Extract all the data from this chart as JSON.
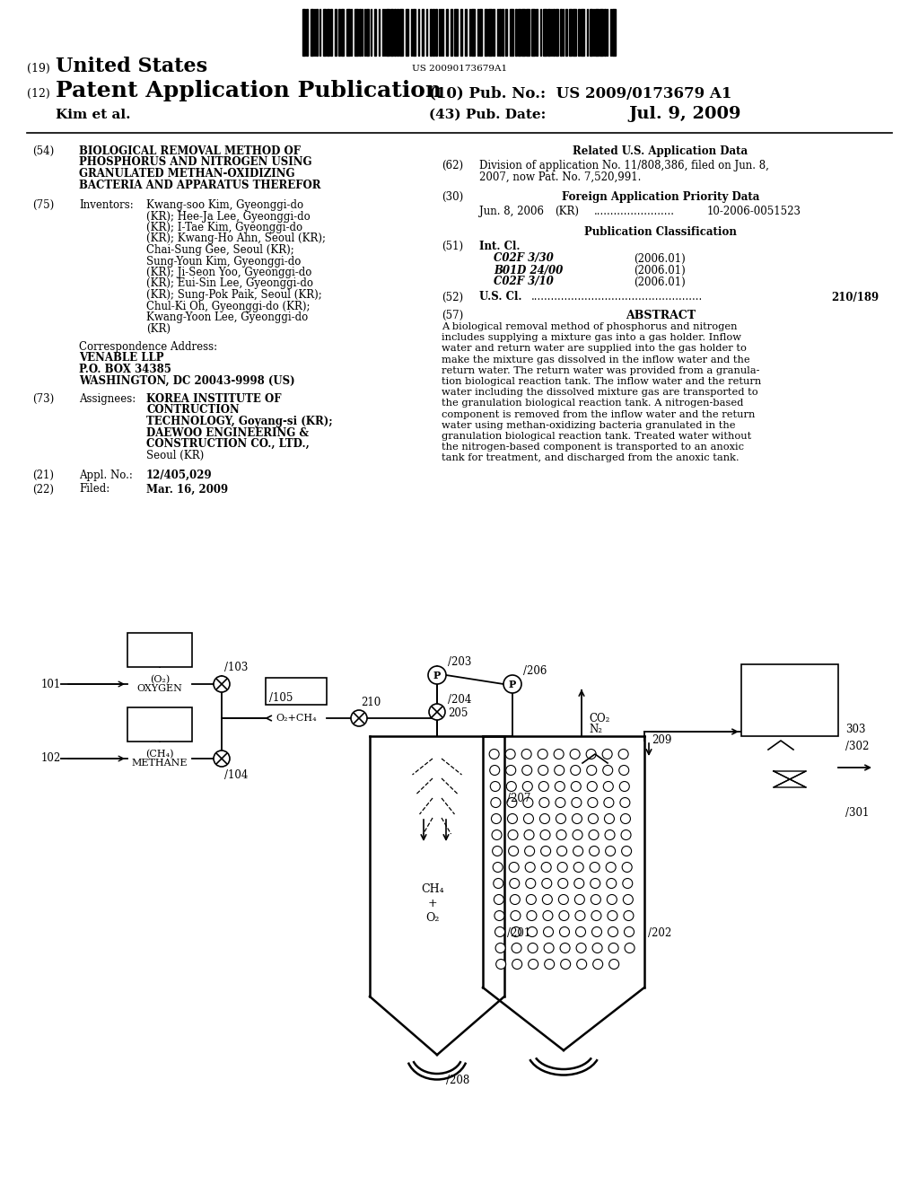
{
  "bg_color": "#ffffff",
  "barcode_text": "US 20090173679A1",
  "field54": "BIOLOGICAL REMOVAL METHOD OF\nPHOSPHORUS AND NITROGEN USING\nGRANULATED METHAN-OXIDIZING\nBACTERIA AND APPARATUS THEREFOR",
  "field75_text": "Kwang-soo Kim, Gyeonggi-do\n(KR); Hee-Ja Lee, Gyeonggi-do\n(KR); I-Tae Kim, Gyeonggi-do\n(KR); Kwang-Ho Ahn, Seoul (KR);\nChai-Sung Gee, Seoul (KR);\nSung-Youn Kim, Gyeonggi-do\n(KR); Ji-Seon Yoo, Gyeonggi-do\n(KR); Eui-Sin Lee, Gyeonggi-do\n(KR); Sung-Pok Paik, Seoul (KR);\nChul-Ki Oh, Gyeonggi-do (KR);\nKwang-Yoon Lee, Gyeonggi-do\n(KR)",
  "corr_text": "VENABLE LLP\nP.O. BOX 34385\nWASHINGTON, DC 20043-9998 (US)",
  "field73_text": "KOREA INSTITUTE OF\nCONTRUCTION\nTECHNOLOGY, Goyang-si (KR);\nDAEWOO ENGINEERING &\nCONSTRUCTION CO., LTD.,\nSeoul (KR)",
  "field62_text": "Division of application No. 11/808,386, filed on Jun. 8,\n2007, now Pat. No. 7,520,991.",
  "foreign_date": "Jun. 8, 2006",
  "foreign_num": "10-2006-0051523",
  "field51_classes": [
    [
      "C02F 3/30",
      "(2006.01)"
    ],
    [
      "B01D 24/00",
      "(2006.01)"
    ],
    [
      "C02F 3/10",
      "(2006.01)"
    ]
  ],
  "abstract_text": "A biological removal method of phosphorus and nitrogen\nincludes supplying a mixture gas into a gas holder. Inflow\nwater and return water are supplied into the gas holder to\nmake the mixture gas dissolved in the inflow water and the\nreturn water. The return water was provided from a granula-\ntion biological reaction tank. The inflow water and the return\nwater including the dissolved mixture gas are transported to\nthe granulation biological reaction tank. A nitrogen-based\ncomponent is removed from the inflow water and the return\nwater using methan-oxidizing bacteria granulated in the\ngranulation biological reaction tank. Treated water without\nthe nitrogen-based component is transported to an anoxic\ntank for treatment, and discharged from the anoxic tank."
}
